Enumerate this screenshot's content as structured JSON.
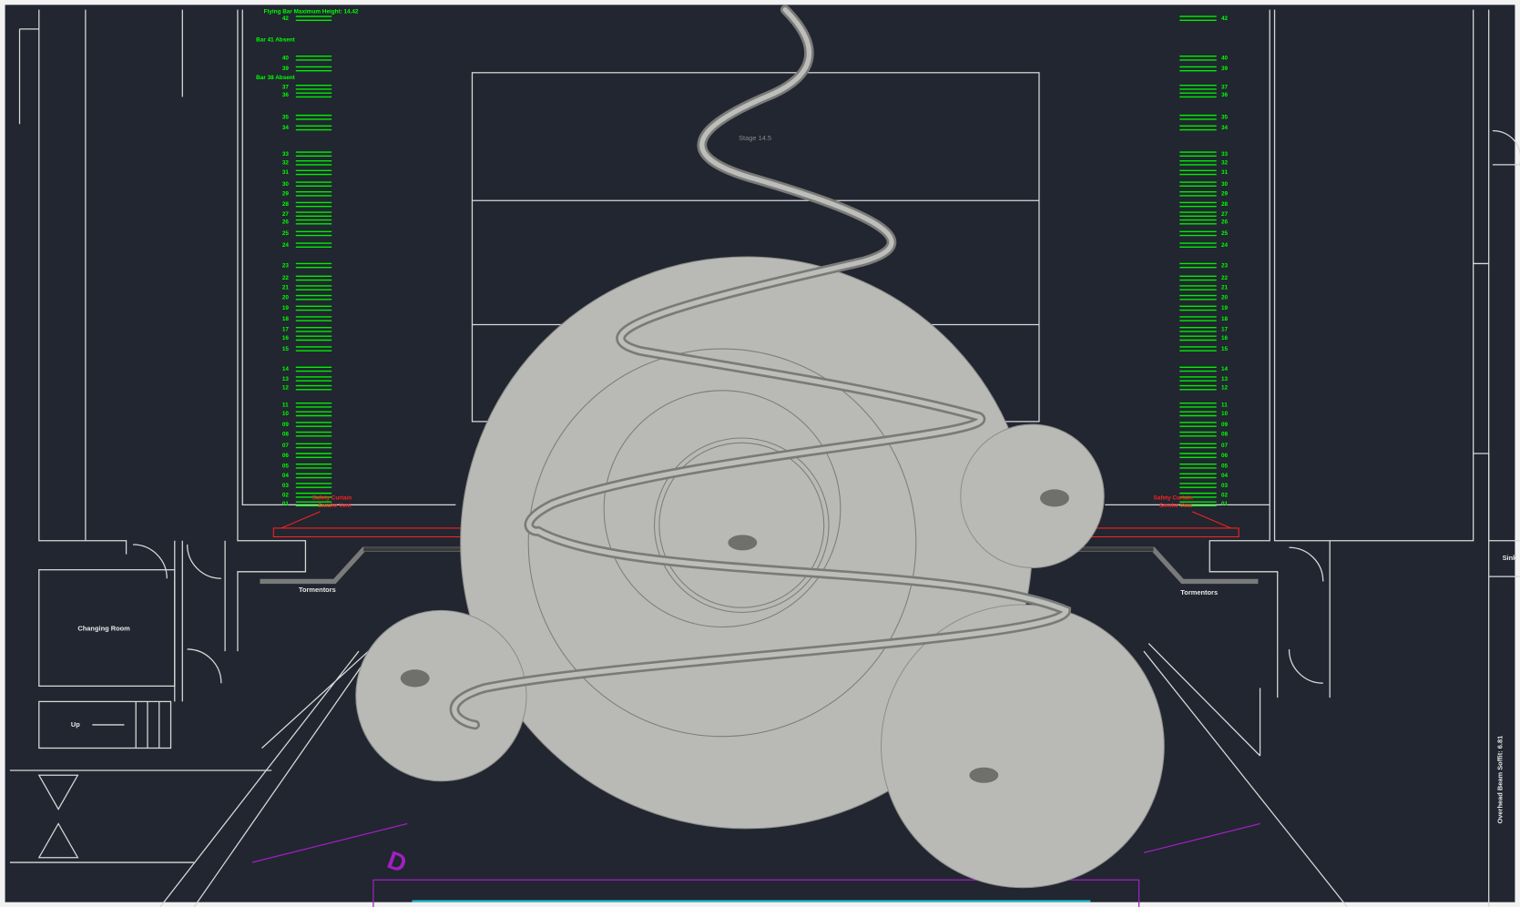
{
  "drawing": {
    "header_note": "Flying Bar Maximum Height: 14.42",
    "absent_notes": [
      "Bar 41 Absent",
      "Bar 38 Absent"
    ],
    "stage_label": "Stage 14.5",
    "bar_numbers": [
      "42",
      "40",
      "39",
      "37",
      "36",
      "35",
      "34",
      "33",
      "32",
      "31",
      "30",
      "29",
      "28",
      "27",
      "26",
      "25",
      "24",
      "23",
      "22",
      "21",
      "20",
      "19",
      "18",
      "17",
      "16",
      "15",
      "14",
      "13",
      "12",
      "11",
      "10",
      "09",
      "08",
      "07",
      "06",
      "05",
      "04",
      "03",
      "02",
      "01"
    ],
    "safety_curtain": [
      "Safety Curtain",
      "Smoke Vent"
    ],
    "tormentors": "Tormentors",
    "changing_room": "Changing Room",
    "up": "Up",
    "sink": "Sink",
    "beam_note": "Overhead Beam Soffit: 6.81"
  }
}
